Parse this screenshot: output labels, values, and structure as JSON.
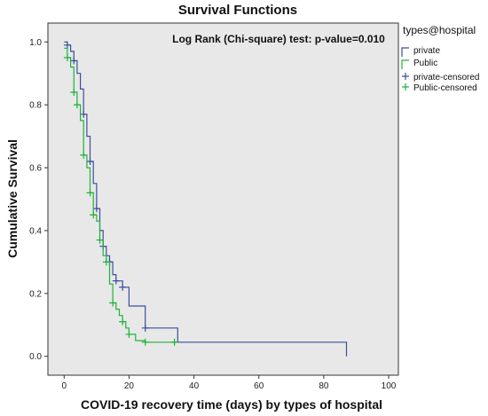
{
  "chart_data": {
    "type": "line",
    "title": "Survival Functions",
    "xlabel": "COVID-19 recovery time (days) by types of hospital",
    "ylabel": "Cumulative  Survival",
    "annotation": "Log Rank (Chi-square) test: p-value=0.010",
    "xlim": [
      -5,
      103
    ],
    "ylim": [
      -0.06,
      1.06
    ],
    "x_ticks": [
      0,
      20,
      40,
      60,
      80,
      100
    ],
    "x_tick_labels": [
      "0",
      "20",
      "40",
      "60",
      "80",
      "100"
    ],
    "y_ticks": [
      0.0,
      0.2,
      0.4,
      0.6,
      0.8,
      1.0
    ],
    "y_tick_labels": [
      "0.0",
      "0.2",
      "0.4",
      "0.6",
      "0.8",
      "1.0"
    ],
    "legend_position": "right",
    "legend": {
      "title": "types@hospital",
      "entries": [
        "private",
        "Public",
        "private-censored",
        "Public-censored"
      ]
    },
    "colors": {
      "private": "#3b4f9e",
      "public": "#1db33a",
      "plot_background": "#e8e8e8"
    },
    "series": [
      {
        "name": "private",
        "step_x": [
          0,
          1,
          2,
          3,
          4,
          5,
          6,
          7,
          8,
          9,
          10,
          11,
          12,
          13,
          14,
          15,
          16,
          18,
          20,
          25,
          35,
          87
        ],
        "step_y": [
          1.0,
          0.99,
          0.97,
          0.94,
          0.9,
          0.85,
          0.77,
          0.7,
          0.62,
          0.55,
          0.47,
          0.4,
          0.35,
          0.32,
          0.3,
          0.26,
          0.24,
          0.22,
          0.16,
          0.09,
          0.045,
          0.0
        ],
        "censored_x": [
          1,
          3,
          6,
          8,
          10,
          12,
          14,
          16,
          18,
          25
        ],
        "censored_y": [
          0.99,
          0.94,
          0.77,
          0.62,
          0.47,
          0.35,
          0.3,
          0.24,
          0.22,
          0.09
        ]
      },
      {
        "name": "Public",
        "step_x": [
          0,
          1,
          2,
          3,
          4,
          5,
          6,
          7,
          8,
          9,
          10,
          11,
          12,
          13,
          14,
          15,
          16,
          17,
          18,
          19,
          20,
          22,
          25,
          35
        ],
        "step_y": [
          0.98,
          0.95,
          0.92,
          0.84,
          0.8,
          0.75,
          0.64,
          0.6,
          0.52,
          0.45,
          0.43,
          0.37,
          0.32,
          0.3,
          0.23,
          0.17,
          0.15,
          0.13,
          0.11,
          0.09,
          0.07,
          0.05,
          0.045,
          0.045
        ],
        "censored_x": [
          1,
          3,
          4,
          6,
          8,
          9,
          11,
          13,
          15,
          18,
          20,
          25,
          34
        ],
        "censored_y": [
          0.95,
          0.84,
          0.8,
          0.64,
          0.52,
          0.45,
          0.37,
          0.3,
          0.17,
          0.11,
          0.07,
          0.045,
          0.045
        ]
      }
    ]
  }
}
